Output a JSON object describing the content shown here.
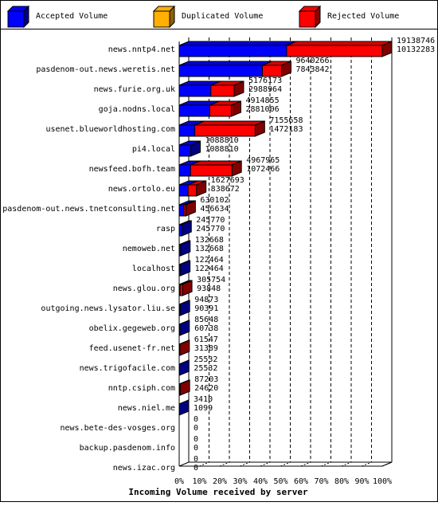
{
  "chart_data": {
    "type": "bar",
    "orientation": "horizontal",
    "stacked": true,
    "render_style": "3d",
    "title": "Incoming Volume received by server",
    "legend": {
      "placement": "top",
      "items": [
        {
          "name": "Accepted Volume",
          "color": "#0000ff"
        },
        {
          "name": "Duplicated Volume",
          "color": "#ffb000"
        },
        {
          "name": "Rejected Volume",
          "color": "#ff0000"
        }
      ]
    },
    "x_axis": {
      "range": [
        0,
        100
      ],
      "ticks": [
        "0%",
        "10%",
        "20%",
        "30%",
        "40%",
        "50%",
        "60%",
        "70%",
        "80%",
        "90%",
        "100%"
      ],
      "grid": "dashed"
    },
    "rows": [
      {
        "server": "news.nntp4.net",
        "total": 19138746,
        "accepted": 10132283,
        "label_total": "19138746",
        "label_accepted": "10132283"
      },
      {
        "server": "pasdenom-out.news.weretis.net",
        "total": 9640266,
        "accepted": 7843842,
        "label_total": "9640266",
        "label_accepted": "7843842"
      },
      {
        "server": "news.furie.org.uk",
        "total": 5176173,
        "accepted": 2988964,
        "label_total": "5176173",
        "label_accepted": "2988964"
      },
      {
        "server": "goja.nodns.local",
        "total": 4914855,
        "accepted": 2881006,
        "label_total": "4914855",
        "label_accepted": "2881006"
      },
      {
        "server": "usenet.blueworldhosting.com",
        "total": 7155658,
        "accepted": 1472183,
        "label_total": "7155658",
        "label_accepted": "1472183"
      },
      {
        "server": "pi4.local",
        "total": 1088810,
        "accepted": 1088810,
        "label_total": "1088810",
        "label_accepted": "1088810"
      },
      {
        "server": "newsfeed.bofh.team",
        "total": 4967965,
        "accepted": 1072466,
        "label_total": "4967965",
        "label_accepted": "1072466"
      },
      {
        "server": "news.ortolo.eu",
        "total": 1627693,
        "accepted": 838672,
        "label_total": "1627693",
        "label_accepted": "838672"
      },
      {
        "server": "pasdenom-out.news.tnetconsulting.net",
        "total": 630102,
        "accepted": 456634,
        "label_total": "630102",
        "label_accepted": "456634"
      },
      {
        "server": "rasp",
        "total": 245770,
        "accepted": 245770,
        "label_total": "245770",
        "label_accepted": "245770"
      },
      {
        "server": "nemoweb.net",
        "total": 132668,
        "accepted": 132668,
        "label_total": "132668",
        "label_accepted": "132668"
      },
      {
        "server": "localhost",
        "total": 122464,
        "accepted": 122464,
        "label_total": "122464",
        "label_accepted": "122464"
      },
      {
        "server": "news.glou.org",
        "total": 305754,
        "accepted": 93848,
        "label_total": "305754",
        "label_accepted": "93848"
      },
      {
        "server": "outgoing.news.lysator.liu.se",
        "total": 94873,
        "accepted": 90391,
        "label_total": "94873",
        "label_accepted": "90391"
      },
      {
        "server": "obelix.gegeweb.org",
        "total": 85648,
        "accepted": 60738,
        "label_total": "85648",
        "label_accepted": "60738"
      },
      {
        "server": "feed.usenet-fr.net",
        "total": 61547,
        "accepted": 31389,
        "label_total": "61547",
        "label_accepted": "31389"
      },
      {
        "server": "news.trigofacile.com",
        "total": 25532,
        "accepted": 25532,
        "label_total": "25532",
        "label_accepted": "25532"
      },
      {
        "server": "nntp.csiph.com",
        "total": 87203,
        "accepted": 24620,
        "label_total": "87203",
        "label_accepted": "24620"
      },
      {
        "server": "news.niel.me",
        "total": 3410,
        "accepted": 1099,
        "label_total": "3410",
        "label_accepted": "1099"
      },
      {
        "server": "news.bete-des-vosges.org",
        "total": 0,
        "accepted": 0,
        "label_total": "0",
        "label_accepted": "0"
      },
      {
        "server": "backup.pasdenom.info",
        "total": 0,
        "accepted": 0,
        "label_total": "0",
        "label_accepted": "0"
      },
      {
        "server": "news.izac.org",
        "total": 0,
        "accepted": 0,
        "label_total": "0",
        "label_accepted": "0"
      }
    ]
  }
}
